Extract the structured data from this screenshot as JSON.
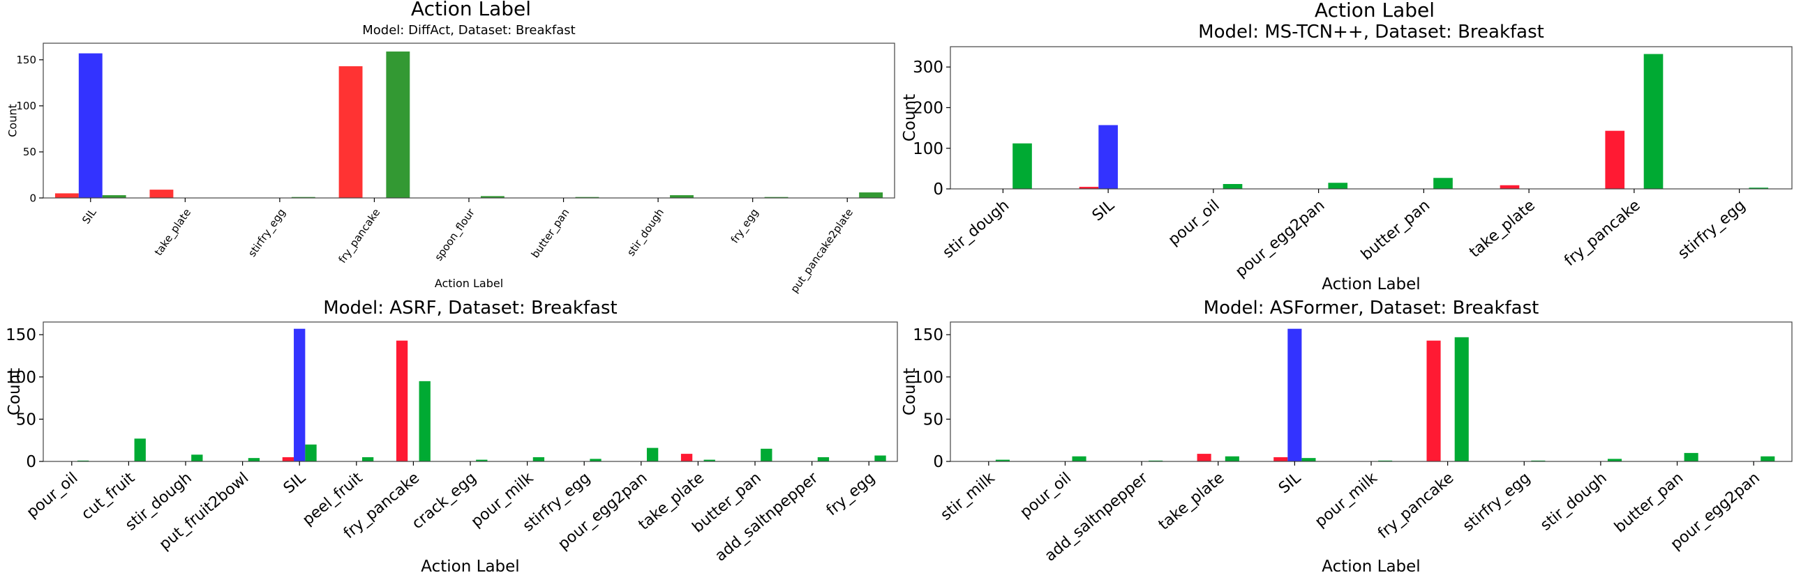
{
  "figure": {
    "top_left_label": "Action Label",
    "top_right_label": "Action Label"
  },
  "chart_data": [
    {
      "type": "bar",
      "title": "Model: DiffAct, Dataset: Breakfast",
      "xlabel": "Action Label",
      "ylabel": "Count",
      "ylim": [
        0,
        168
      ],
      "yticks": [
        0,
        50,
        100,
        150
      ],
      "grid": false,
      "categories": [
        "SIL",
        "take_plate",
        "stirfry_egg",
        "fry_pancake",
        "spoon_flour",
        "butter_pan",
        "stir_dough",
        "fry_egg",
        "put_pancake2plate"
      ],
      "series": [
        {
          "color": "#ff3333",
          "values": [
            5,
            9,
            0,
            143,
            0,
            0,
            0,
            0,
            0
          ]
        },
        {
          "color": "#3333ff",
          "values": [
            157,
            0,
            0,
            0,
            0,
            0,
            0,
            0,
            0
          ]
        },
        {
          "color": "#339933",
          "values": [
            3,
            0,
            1,
            159,
            2,
            1,
            3,
            1,
            6
          ]
        }
      ]
    },
    {
      "type": "bar",
      "title": "Model: MS-TCN++, Dataset: Breakfast",
      "xlabel": "Action Label",
      "ylabel": "Count",
      "ylim": [
        0,
        350
      ],
      "yticks": [
        0,
        100,
        200,
        300
      ],
      "grid": false,
      "categories": [
        "stir_dough",
        "SIL",
        "pour_oil",
        "pour_egg2pan",
        "butter_pan",
        "take_plate",
        "fry_pancake",
        "stirfry_egg"
      ],
      "series": [
        {
          "color": "#ff1a33",
          "values": [
            0,
            5,
            0,
            0,
            0,
            9,
            143,
            0
          ]
        },
        {
          "color": "#3333ff",
          "values": [
            0,
            157,
            0,
            0,
            0,
            0,
            0,
            0
          ]
        },
        {
          "color": "#00aa33",
          "values": [
            112,
            0,
            12,
            15,
            27,
            0,
            332,
            3
          ]
        }
      ]
    },
    {
      "type": "bar",
      "title": "Model: ASRF, Dataset: Breakfast",
      "xlabel": "Action Label",
      "ylabel": "Count",
      "ylim": [
        0,
        165
      ],
      "yticks": [
        0,
        50,
        100,
        150
      ],
      "grid": false,
      "categories": [
        "pour_oil",
        "cut_fruit",
        "stir_dough",
        "put_fruit2bowl",
        "SIL",
        "peel_fruit",
        "fry_pancake",
        "crack_egg",
        "pour_milk",
        "stirfry_egg",
        "pour_egg2pan",
        "take_plate",
        "butter_pan",
        "add_saltnpepper",
        "fry_egg"
      ],
      "series": [
        {
          "color": "#ff1a33",
          "values": [
            0,
            0,
            0,
            0,
            5,
            0,
            143,
            0,
            0,
            0,
            0,
            9,
            0,
            0,
            0
          ]
        },
        {
          "color": "#3333ff",
          "values": [
            0,
            0,
            0,
            0,
            157,
            0,
            0,
            0,
            0,
            0,
            0,
            0,
            0,
            0,
            0
          ]
        },
        {
          "color": "#00aa33",
          "values": [
            1,
            27,
            8,
            4,
            20,
            5,
            95,
            2,
            5,
            3,
            16,
            2,
            15,
            5,
            7
          ]
        }
      ]
    },
    {
      "type": "bar",
      "title": "Model: ASFormer, Dataset: Breakfast",
      "xlabel": "Action Label",
      "ylabel": "Count",
      "ylim": [
        0,
        165
      ],
      "yticks": [
        0,
        50,
        100,
        150
      ],
      "grid": false,
      "categories": [
        "stir_milk",
        "pour_oil",
        "add_saltnpepper",
        "take_plate",
        "SIL",
        "pour_milk",
        "fry_pancake",
        "stirfry_egg",
        "stir_dough",
        "butter_pan",
        "pour_egg2pan"
      ],
      "series": [
        {
          "color": "#ff1a33",
          "values": [
            0,
            0,
            0,
            9,
            5,
            0,
            143,
            0,
            0,
            0,
            0
          ]
        },
        {
          "color": "#3333ff",
          "values": [
            0,
            0,
            0,
            0,
            157,
            0,
            0,
            0,
            0,
            0,
            0
          ]
        },
        {
          "color": "#00aa33",
          "values": [
            2,
            6,
            1,
            6,
            4,
            1,
            147,
            1,
            3,
            10,
            6
          ]
        }
      ]
    }
  ]
}
